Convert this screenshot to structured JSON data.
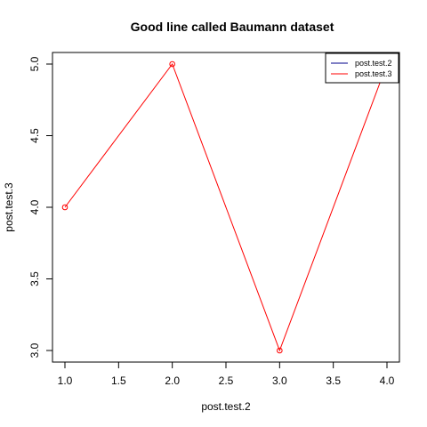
{
  "chart_data": {
    "type": "line",
    "title": "Good line called Baumann dataset",
    "xlabel": "post.test.2",
    "ylabel": "post.test.3",
    "xlim": [
      1.0,
      4.0
    ],
    "ylim": [
      3.0,
      5.0
    ],
    "x_ticks": [
      "1.0",
      "1.5",
      "2.0",
      "2.5",
      "3.0",
      "3.5",
      "4.0"
    ],
    "y_ticks": [
      "3.0",
      "3.5",
      "4.0",
      "4.5",
      "5.0"
    ],
    "grid": false,
    "legend_position": "top-right",
    "legend": [
      {
        "label": "post.test.2",
        "color": "#00008b"
      },
      {
        "label": "post.test.3",
        "color": "#ff0000"
      }
    ],
    "series": [
      {
        "name": "post.test.3",
        "color": "#ff0000",
        "marker": "open-circle",
        "points": [
          {
            "x": 1.0,
            "y": 4.0
          },
          {
            "x": 2.0,
            "y": 5.0
          },
          {
            "x": 3.0,
            "y": 3.0
          },
          {
            "x": 4.0,
            "y": 5.0
          }
        ]
      }
    ]
  }
}
